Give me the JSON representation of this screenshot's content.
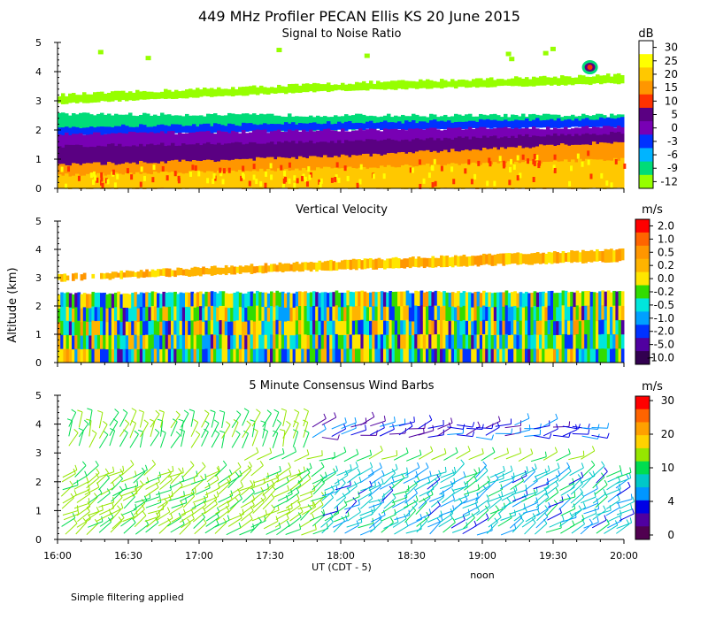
{
  "title": "449 MHz Profiler PECAN Ellis KS 20 June 2015",
  "ylabel": "Altitude (km)",
  "xlabel": "UT (CDT - 5)",
  "x_ticks": [
    "16:00",
    "16:30",
    "17:00",
    "17:30",
    "18:00",
    "18:30",
    "19:00",
    "19:30",
    "20:00"
  ],
  "noon_label": "noon",
  "footnote": "Simple filtering applied",
  "chart_data": [
    {
      "type": "heatmap",
      "title": "Signal to Noise Ratio",
      "xlabel": "UT (CDT - 5)",
      "ylabel": "Altitude (km)",
      "xlim": [
        "16:00",
        "20:00"
      ],
      "ylim": [
        0,
        5
      ],
      "yticks": [
        "0",
        "1",
        "2",
        "3",
        "4",
        "5"
      ],
      "colorbar": {
        "unit": "dB",
        "labels": [
          "30",
          "25",
          "20",
          "15",
          "10",
          "5",
          "0",
          "-3",
          "-6",
          "-9",
          "-12"
        ],
        "colors": [
          "#ffffff",
          "#ffff00",
          "#ffc800",
          "#ff9600",
          "#ff3200",
          "#5a0082",
          "#7800b4",
          "#0032ff",
          "#00b4ff",
          "#00dc78",
          "#96ff00"
        ]
      },
      "layers": [
        {
          "name": "band-3km",
          "bottom": [
            2.9,
            3.35,
            3.6
          ],
          "top": [
            3.2,
            3.6,
            3.9
          ],
          "color": "#96ff00"
        },
        {
          "name": "band-2km-outer",
          "bottom": [
            1.85,
            2.0,
            2.2
          ],
          "top": [
            2.55,
            2.5,
            2.5
          ],
          "color": "#00dc78"
        },
        {
          "name": "band-2km-inner",
          "bottom": [
            1.8,
            2.0,
            2.1
          ],
          "top": [
            2.1,
            2.25,
            2.4
          ],
          "color": "#0032ff"
        },
        {
          "name": "band-1-2km",
          "bottom": [
            0.85,
            1.4,
            1.75
          ],
          "top": [
            1.85,
            2.0,
            2.1
          ],
          "color": "#7800b4"
        },
        {
          "name": "band-1km",
          "bottom": [
            0.7,
            1.0,
            1.5
          ],
          "top": [
            1.45,
            1.6,
            1.9
          ],
          "color": "#5a0082"
        },
        {
          "name": "band-low-orange",
          "bottom": [
            0.0,
            0.0,
            0.0
          ],
          "top": [
            0.8,
            1.1,
            1.6
          ],
          "color": "#ff9600"
        },
        {
          "name": "band-low-yellow",
          "bottom": [
            0.0,
            0.0,
            0.0
          ],
          "top": [
            0.45,
            0.7,
            1.0
          ],
          "color": "#ffc800"
        }
      ]
    },
    {
      "type": "heatmap",
      "title": "Vertical Velocity",
      "xlabel": "UT (CDT - 5)",
      "ylabel": "Altitude (km)",
      "xlim": [
        "16:00",
        "20:00"
      ],
      "ylim": [
        0,
        5
      ],
      "yticks": [
        "0",
        "1",
        "2",
        "3",
        "4",
        "5"
      ],
      "colorbar": {
        "unit": "m/s",
        "labels": [
          "2.0",
          "1.0",
          "0.5",
          "0.2",
          "0.0",
          "-0.2",
          "-0.5",
          "-1.0",
          "-2.0",
          "-5.0",
          "-10.0"
        ],
        "colors": [
          "#ff0000",
          "#ff6400",
          "#ff9600",
          "#ffb400",
          "#ffe600",
          "#32dc00",
          "#00e6dc",
          "#00a0ff",
          "#0032ff",
          "#5000a0",
          "#320050"
        ]
      },
      "layers": [
        {
          "name": "upper-layer",
          "bottom": [
            2.9,
            3.3,
            3.6
          ],
          "top": [
            3.1,
            3.6,
            4.0
          ],
          "color": "#ffb400"
        },
        {
          "name": "lower-layer",
          "bottom": [
            0.0,
            0.0,
            0.0
          ],
          "top": [
            2.45,
            2.5,
            2.5
          ],
          "color": "#32dc00"
        }
      ]
    },
    {
      "type": "scatter",
      "title": "5 Minute Consensus Wind Barbs",
      "xlabel": "UT (CDT - 5)",
      "ylabel": "Altitude (km)",
      "xlim": [
        "16:00",
        "20:00"
      ],
      "ylim": [
        0,
        5
      ],
      "yticks": [
        "0",
        "1",
        "2",
        "3",
        "4",
        "5"
      ],
      "colorbar": {
        "unit": "m/s",
        "labels": [
          "30",
          "20",
          "10",
          "4",
          "0"
        ],
        "colors": [
          "#ff0000",
          "#ff6400",
          "#ffa000",
          "#ffd200",
          "#96e600",
          "#00dc50",
          "#00c8c8",
          "#0096ff",
          "#0000e6",
          "#5000a0",
          "#500050"
        ]
      }
    }
  ]
}
